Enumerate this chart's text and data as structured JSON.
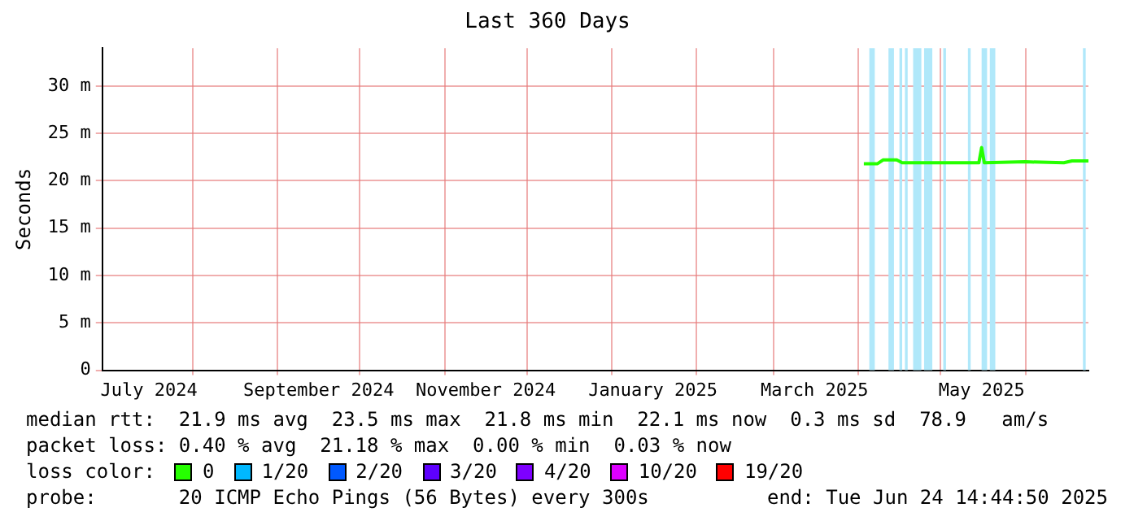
{
  "chart_data": {
    "type": "line",
    "title": "Last 360 Days",
    "ylabel": "Seconds",
    "x": [
      "2025-04-03",
      "2025-04-08",
      "2025-04-10",
      "2025-04-15",
      "2025-04-17",
      "2025-04-25",
      "2025-05-10",
      "2025-05-15",
      "2025-05-16",
      "2025-05-17",
      "2025-06-01",
      "2025-06-15",
      "2025-06-18",
      "2025-06-24"
    ],
    "series": [
      {
        "name": "0",
        "color": "#26ff00",
        "values": [
          21.8,
          21.8,
          22.2,
          22.2,
          21.9,
          21.9,
          21.9,
          21.9,
          23.5,
          21.9,
          22,
          21.9,
          22.1,
          22.1
        ]
      },
      {
        "name": "1/20",
        "color": "#00b8ff",
        "values": [
          null,
          null,
          null,
          null,
          null,
          null,
          null,
          null,
          null,
          null,
          null,
          null,
          null,
          null
        ]
      },
      {
        "name": "2/20",
        "color": "#0059ff",
        "values": [
          null,
          null,
          null,
          null,
          null,
          null,
          null,
          null,
          null,
          null,
          null,
          null,
          null,
          null
        ]
      },
      {
        "name": "3/20",
        "color": "#5e00ff",
        "values": [
          null,
          null,
          null,
          null,
          null,
          null,
          null,
          null,
          null,
          null,
          null,
          null,
          null,
          null
        ]
      },
      {
        "name": "4/20",
        "color": "#7e00ff",
        "values": [
          null,
          null,
          null,
          null,
          null,
          null,
          null,
          null,
          null,
          null,
          null,
          null,
          null,
          null
        ]
      },
      {
        "name": "10/20",
        "color": "#dd00ff",
        "values": [
          null,
          null,
          null,
          null,
          null,
          null,
          null,
          null,
          null,
          null,
          null,
          null,
          null,
          null
        ]
      },
      {
        "name": "19/20",
        "color": "#ff0000",
        "values": [
          null,
          null,
          null,
          null,
          null,
          null,
          null,
          null,
          null,
          null,
          null,
          null,
          null,
          null
        ]
      }
    ],
    "legend_title": "loss color:",
    "legend": "bottom",
    "grid": true,
    "marker": "none",
    "line_style": "solid",
    "xlim": [
      "2024-06-29",
      "2025-06-24"
    ],
    "xticks": [
      {
        "value": "2024-07-16",
        "label": "July 2024"
      },
      {
        "value": "2024-08-01",
        "label": null
      },
      {
        "value": "2024-09-01",
        "label": null
      },
      {
        "value": "2024-09-16",
        "label": "September 2024"
      },
      {
        "value": "2024-10-01",
        "label": null
      },
      {
        "value": "2024-11-01",
        "label": null
      },
      {
        "value": "2024-11-16",
        "label": "November 2024"
      },
      {
        "value": "2024-12-01",
        "label": null
      },
      {
        "value": "2025-01-01",
        "label": null
      },
      {
        "value": "2025-01-16",
        "label": "January 2025"
      },
      {
        "value": "2025-02-01",
        "label": null
      },
      {
        "value": "2025-03-01",
        "label": null
      },
      {
        "value": "2025-03-16",
        "label": "March 2025"
      },
      {
        "value": "2025-04-01",
        "label": null
      },
      {
        "value": "2025-05-01",
        "label": null
      },
      {
        "value": "2025-05-16",
        "label": "May 2025"
      },
      {
        "value": "2025-06-01",
        "label": null
      }
    ],
    "ylim": [
      0,
      34
    ],
    "yticks": [
      {
        "value": 0,
        "label": "0"
      },
      {
        "value": 5,
        "label": "5 m"
      },
      {
        "value": 10,
        "label": "10 m"
      },
      {
        "value": 15,
        "label": "15 m"
      },
      {
        "value": 20,
        "label": "20 m"
      },
      {
        "value": 25,
        "label": "25 m"
      },
      {
        "value": 30,
        "label": "30 m"
      }
    ],
    "bands": [
      {
        "axis": "x",
        "from": "2025-04-05",
        "to": "2025-04-07",
        "color": "#b0e8fa"
      },
      {
        "axis": "x",
        "from": "2025-04-12",
        "to": "2025-04-14",
        "color": "#b0e8fa"
      },
      {
        "axis": "x",
        "from": "2025-04-16",
        "to": "2025-04-17",
        "color": "#b0e8fa"
      },
      {
        "axis": "x",
        "from": "2025-04-18",
        "to": "2025-04-19",
        "color": "#b0e8fa"
      },
      {
        "axis": "x",
        "from": "2025-04-21",
        "to": "2025-04-24",
        "color": "#b0e8fa"
      },
      {
        "axis": "x",
        "from": "2025-04-25",
        "to": "2025-04-28",
        "color": "#b0e8fa"
      },
      {
        "axis": "x",
        "from": "2025-05-02",
        "to": "2025-05-03",
        "color": "#b0e8fa"
      },
      {
        "axis": "x",
        "from": "2025-05-11",
        "to": "2025-05-12",
        "color": "#b0e8fa"
      },
      {
        "axis": "x",
        "from": "2025-05-16",
        "to": "2025-05-18",
        "color": "#b0e8fa"
      },
      {
        "axis": "x",
        "from": "2025-05-19",
        "to": "2025-05-21",
        "color": "#b0e8fa"
      },
      {
        "axis": "x",
        "from": "2025-06-22",
        "to": "2025-06-23",
        "color": "#b0e8fa"
      }
    ],
    "annotations": [
      "median rtt:  21.9 ms avg  23.5 ms max  21.8 ms min  22.1 ms now  0.3 ms sd  78.9   am/s",
      "packet loss: 0.40 % avg  21.18 % max  0.00 % min  0.03 % now",
      "probe:       20 ICMP Echo Pings (56 Bytes) every 300s",
      "end: Tue Jun 24 14:44:50 2025"
    ]
  }
}
